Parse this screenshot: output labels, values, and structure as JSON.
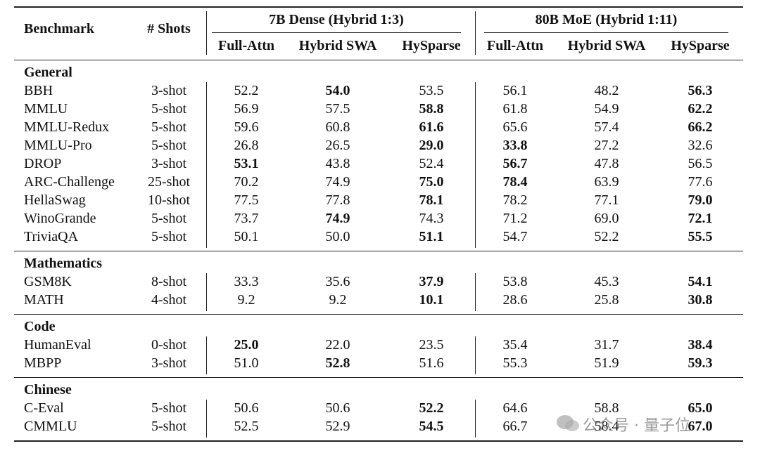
{
  "header": {
    "benchmark": "Benchmark",
    "shots": "# Shots",
    "groups": [
      {
        "title": "7B Dense (Hybrid 1:3)",
        "columns": [
          "Full-Attn",
          "Hybrid SWA",
          "HySparse"
        ]
      },
      {
        "title": "80B MoE (Hybrid 1:11)",
        "columns": [
          "Full-Attn",
          "Hybrid SWA",
          "HySparse"
        ]
      }
    ]
  },
  "sections": [
    {
      "title": "General",
      "rows": [
        {
          "name": "BBH",
          "shots": "3-shot",
          "values": [
            "52.2",
            "54.0",
            "53.5",
            "56.1",
            "48.2",
            "56.3"
          ],
          "bold": [
            1,
            5
          ]
        },
        {
          "name": "MMLU",
          "shots": "5-shot",
          "values": [
            "56.9",
            "57.5",
            "58.8",
            "61.8",
            "54.9",
            "62.2"
          ],
          "bold": [
            2,
            5
          ]
        },
        {
          "name": "MMLU-Redux",
          "shots": "5-shot",
          "values": [
            "59.6",
            "60.8",
            "61.6",
            "65.6",
            "57.4",
            "66.2"
          ],
          "bold": [
            2,
            5
          ]
        },
        {
          "name": "MMLU-Pro",
          "shots": "5-shot",
          "values": [
            "26.8",
            "26.5",
            "29.0",
            "33.8",
            "27.2",
            "32.6"
          ],
          "bold": [
            2,
            3
          ]
        },
        {
          "name": "DROP",
          "shots": "3-shot",
          "values": [
            "53.1",
            "43.8",
            "52.4",
            "56.7",
            "47.8",
            "56.5"
          ],
          "bold": [
            0,
            3
          ]
        },
        {
          "name": "ARC-Challenge",
          "shots": "25-shot",
          "values": [
            "70.2",
            "74.9",
            "75.0",
            "78.4",
            "63.9",
            "77.6"
          ],
          "bold": [
            2,
            3
          ]
        },
        {
          "name": "HellaSwag",
          "shots": "10-shot",
          "values": [
            "77.5",
            "77.8",
            "78.1",
            "78.2",
            "77.1",
            "79.0"
          ],
          "bold": [
            2,
            5
          ]
        },
        {
          "name": "WinoGrande",
          "shots": "5-shot",
          "values": [
            "73.7",
            "74.9",
            "74.3",
            "71.2",
            "69.0",
            "72.1"
          ],
          "bold": [
            1,
            5
          ]
        },
        {
          "name": "TriviaQA",
          "shots": "5-shot",
          "values": [
            "50.1",
            "50.0",
            "51.1",
            "54.7",
            "52.2",
            "55.5"
          ],
          "bold": [
            2,
            5
          ]
        }
      ]
    },
    {
      "title": "Mathematics",
      "rows": [
        {
          "name": "GSM8K",
          "shots": "8-shot",
          "values": [
            "33.3",
            "35.6",
            "37.9",
            "53.8",
            "45.3",
            "54.1"
          ],
          "bold": [
            2,
            5
          ]
        },
        {
          "name": "MATH",
          "shots": "4-shot",
          "values": [
            "9.2",
            "9.2",
            "10.1",
            "28.6",
            "25.8",
            "30.8"
          ],
          "bold": [
            2,
            5
          ]
        }
      ]
    },
    {
      "title": "Code",
      "rows": [
        {
          "name": "HumanEval",
          "shots": "0-shot",
          "values": [
            "25.0",
            "22.0",
            "23.5",
            "35.4",
            "31.7",
            "38.4"
          ],
          "bold": [
            0,
            5
          ]
        },
        {
          "name": "MBPP",
          "shots": "3-shot",
          "values": [
            "51.0",
            "52.8",
            "51.6",
            "55.3",
            "51.9",
            "59.3"
          ],
          "bold": [
            1,
            5
          ]
        }
      ]
    },
    {
      "title": "Chinese",
      "rows": [
        {
          "name": "C-Eval",
          "shots": "5-shot",
          "values": [
            "50.6",
            "50.6",
            "52.2",
            "64.6",
            "58.8",
            "65.0"
          ],
          "bold": [
            2,
            5
          ]
        },
        {
          "name": "CMMLU",
          "shots": "5-shot",
          "values": [
            "52.5",
            "52.9",
            "54.5",
            "66.7",
            "58.4",
            "67.0"
          ],
          "bold": [
            2,
            5
          ]
        }
      ]
    }
  ],
  "watermark": "公众号 · 量子位"
}
